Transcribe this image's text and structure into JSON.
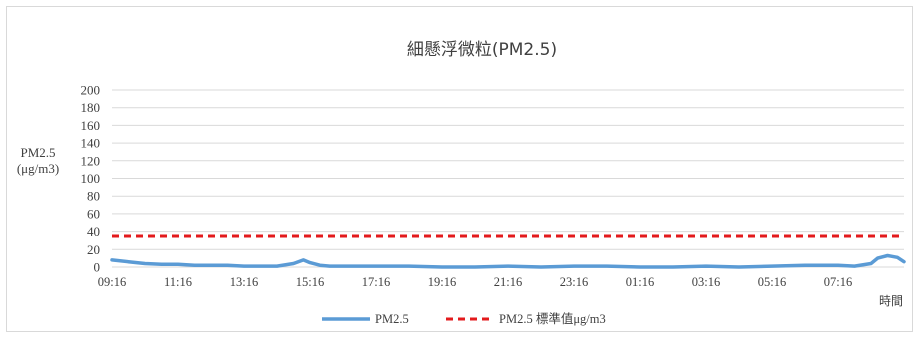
{
  "chart_data": {
    "type": "line",
    "title": "細懸浮微粒(PM2.5)",
    "ylabel_line1": "PM2.5",
    "ylabel_line2": "(μg/m3)",
    "xlabel": "時間",
    "ylim": [
      0,
      200
    ],
    "y_ticks": [
      0,
      20,
      40,
      60,
      80,
      100,
      120,
      140,
      160,
      180,
      200
    ],
    "x_tick_labels": [
      "09:16",
      "11:16",
      "13:16",
      "15:16",
      "17:16",
      "19:16",
      "21:16",
      "23:16",
      "01:16",
      "03:16",
      "05:16",
      "07:16"
    ],
    "grid": true,
    "legend_position": "bottom",
    "series": [
      {
        "name": "PM2.5",
        "color": "#5b9bd5",
        "style": "solid",
        "x_hours": [
          0,
          0.5,
          1,
          1.5,
          2,
          2.5,
          3,
          3.5,
          4,
          4.5,
          5,
          5.5,
          5.8,
          6,
          6.3,
          6.6,
          7,
          8,
          9,
          10,
          11,
          12,
          13,
          14,
          15,
          16,
          17,
          18,
          19,
          20,
          21,
          22,
          22.5,
          23,
          23.2,
          23.5,
          23.8,
          24
        ],
        "values": [
          8,
          6,
          4,
          3,
          3,
          2,
          2,
          2,
          1,
          1,
          1,
          4,
          8,
          5,
          2,
          1,
          1,
          1,
          1,
          0,
          0,
          1,
          0,
          1,
          1,
          0,
          0,
          1,
          0,
          1,
          2,
          2,
          1,
          4,
          10,
          13,
          11,
          6
        ]
      },
      {
        "name": "PM2.5 標準值μg/m3",
        "color": "#e31a1c",
        "style": "dashed",
        "x_hours": [
          0,
          24
        ],
        "values": [
          35,
          35
        ]
      }
    ]
  }
}
